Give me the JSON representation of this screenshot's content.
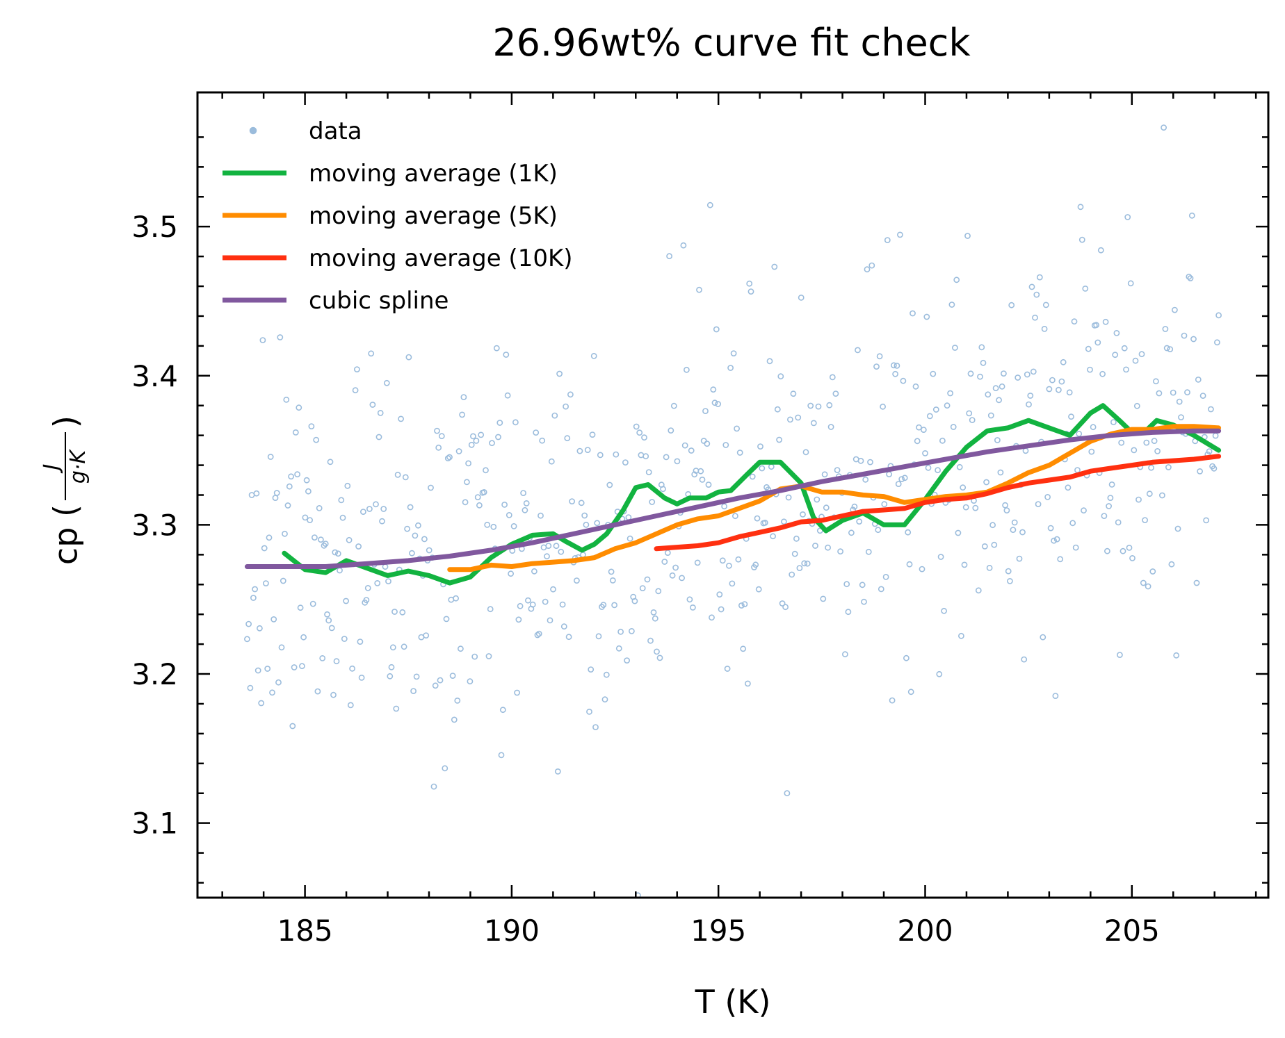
{
  "chart_data": {
    "type": "line",
    "title": "26.96wt% curve fit check",
    "xlabel": "T (K)",
    "ylabel": {
      "prefix": "cp (",
      "numerator": "J",
      "denominator": "g·K",
      "suffix": ")"
    },
    "xlim": [
      182.4,
      208.3
    ],
    "ylim": [
      3.05,
      3.59
    ],
    "x_ticks": [
      185,
      190,
      195,
      200,
      205
    ],
    "y_ticks": [
      3.1,
      3.2,
      3.3,
      3.4,
      3.5
    ],
    "x_tick_labels": [
      "185",
      "190",
      "195",
      "200",
      "205"
    ],
    "y_tick_labels": [
      "3.1",
      "3.2",
      "3.3",
      "3.4",
      "3.5"
    ],
    "grid": false,
    "legend_position": "top-left",
    "series": [
      {
        "name": "data",
        "kind": "scatter",
        "color": "#9bbcdc",
        "x_range": [
          183.6,
          207.1
        ],
        "count": 620,
        "trend": [
          [
            183.6,
            3.272
          ],
          [
            187,
            3.272
          ],
          [
            191,
            3.288
          ],
          [
            195,
            3.312
          ],
          [
            199,
            3.338
          ],
          [
            203,
            3.358
          ],
          [
            207.1,
            3.362
          ]
        ],
        "spread": 0.07
      },
      {
        "name": "moving average (1K)",
        "kind": "line",
        "color": "#12b340",
        "points": [
          [
            184.5,
            3.281
          ],
          [
            185.0,
            3.27
          ],
          [
            185.5,
            3.268
          ],
          [
            186.0,
            3.276
          ],
          [
            186.5,
            3.271
          ],
          [
            187.0,
            3.266
          ],
          [
            187.5,
            3.269
          ],
          [
            188.0,
            3.266
          ],
          [
            188.5,
            3.261
          ],
          [
            189.0,
            3.265
          ],
          [
            189.5,
            3.278
          ],
          [
            190.0,
            3.287
          ],
          [
            190.5,
            3.293
          ],
          [
            191.0,
            3.294
          ],
          [
            191.3,
            3.289
          ],
          [
            191.7,
            3.283
          ],
          [
            192.0,
            3.287
          ],
          [
            192.3,
            3.294
          ],
          [
            192.7,
            3.31
          ],
          [
            193.0,
            3.325
          ],
          [
            193.3,
            3.327
          ],
          [
            193.7,
            3.318
          ],
          [
            194.0,
            3.314
          ],
          [
            194.3,
            3.318
          ],
          [
            194.7,
            3.318
          ],
          [
            195.0,
            3.322
          ],
          [
            195.3,
            3.323
          ],
          [
            195.7,
            3.334
          ],
          [
            196.0,
            3.342
          ],
          [
            196.5,
            3.342
          ],
          [
            197.0,
            3.328
          ],
          [
            197.3,
            3.305
          ],
          [
            197.6,
            3.296
          ],
          [
            198.0,
            3.303
          ],
          [
            198.5,
            3.308
          ],
          [
            199.0,
            3.3
          ],
          [
            199.5,
            3.3
          ],
          [
            200.0,
            3.317
          ],
          [
            200.5,
            3.336
          ],
          [
            201.0,
            3.352
          ],
          [
            201.5,
            3.363
          ],
          [
            202.0,
            3.365
          ],
          [
            202.5,
            3.37
          ],
          [
            203.0,
            3.365
          ],
          [
            203.5,
            3.36
          ],
          [
            204.0,
            3.375
          ],
          [
            204.3,
            3.38
          ],
          [
            204.7,
            3.37
          ],
          [
            205.0,
            3.362
          ],
          [
            205.3,
            3.362
          ],
          [
            205.6,
            3.37
          ],
          [
            206.0,
            3.367
          ],
          [
            206.5,
            3.36
          ],
          [
            207.1,
            3.35
          ]
        ]
      },
      {
        "name": "moving average (5K)",
        "kind": "line",
        "color": "#ff8c00",
        "points": [
          [
            188.5,
            3.27
          ],
          [
            189.0,
            3.27
          ],
          [
            189.5,
            3.273
          ],
          [
            190.0,
            3.272
          ],
          [
            190.5,
            3.274
          ],
          [
            191.0,
            3.275
          ],
          [
            191.5,
            3.276
          ],
          [
            192.0,
            3.278
          ],
          [
            192.5,
            3.284
          ],
          [
            193.0,
            3.288
          ],
          [
            193.5,
            3.294
          ],
          [
            194.0,
            3.3
          ],
          [
            194.5,
            3.304
          ],
          [
            195.0,
            3.306
          ],
          [
            195.5,
            3.311
          ],
          [
            196.0,
            3.316
          ],
          [
            196.5,
            3.324
          ],
          [
            197.0,
            3.326
          ],
          [
            197.5,
            3.322
          ],
          [
            198.0,
            3.322
          ],
          [
            198.5,
            3.32
          ],
          [
            199.0,
            3.319
          ],
          [
            199.5,
            3.315
          ],
          [
            200.0,
            3.317
          ],
          [
            200.5,
            3.319
          ],
          [
            201.0,
            3.32
          ],
          [
            201.5,
            3.322
          ],
          [
            202.0,
            3.328
          ],
          [
            202.5,
            3.335
          ],
          [
            203.0,
            3.34
          ],
          [
            203.5,
            3.348
          ],
          [
            204.0,
            3.356
          ],
          [
            204.5,
            3.361
          ],
          [
            205.0,
            3.364
          ],
          [
            205.5,
            3.364
          ],
          [
            206.0,
            3.366
          ],
          [
            206.5,
            3.366
          ],
          [
            207.1,
            3.365
          ]
        ]
      },
      {
        "name": "moving average (10K)",
        "kind": "line",
        "color": "#ff3010",
        "points": [
          [
            193.5,
            3.284
          ],
          [
            194.0,
            3.285
          ],
          [
            194.5,
            3.286
          ],
          [
            195.0,
            3.288
          ],
          [
            195.5,
            3.292
          ],
          [
            196.0,
            3.295
          ],
          [
            196.5,
            3.298
          ],
          [
            197.0,
            3.302
          ],
          [
            197.5,
            3.303
          ],
          [
            198.0,
            3.306
          ],
          [
            198.5,
            3.309
          ],
          [
            199.0,
            3.31
          ],
          [
            199.5,
            3.311
          ],
          [
            200.0,
            3.315
          ],
          [
            200.5,
            3.317
          ],
          [
            201.0,
            3.318
          ],
          [
            201.5,
            3.321
          ],
          [
            202.0,
            3.325
          ],
          [
            202.5,
            3.328
          ],
          [
            203.0,
            3.33
          ],
          [
            203.5,
            3.332
          ],
          [
            204.0,
            3.336
          ],
          [
            204.5,
            3.338
          ],
          [
            205.0,
            3.34
          ],
          [
            205.5,
            3.342
          ],
          [
            206.0,
            3.343
          ],
          [
            206.5,
            3.344
          ],
          [
            207.1,
            3.346
          ]
        ]
      },
      {
        "name": "cubic spline",
        "kind": "line",
        "color": "#80589e",
        "points": [
          [
            183.6,
            3.272
          ],
          [
            184.5,
            3.272
          ],
          [
            185.5,
            3.272
          ],
          [
            186.5,
            3.274
          ],
          [
            187.5,
            3.276
          ],
          [
            188.5,
            3.279
          ],
          [
            189.5,
            3.283
          ],
          [
            190.5,
            3.288
          ],
          [
            191.5,
            3.294
          ],
          [
            192.5,
            3.3
          ],
          [
            193.5,
            3.306
          ],
          [
            194.5,
            3.312
          ],
          [
            195.5,
            3.318
          ],
          [
            196.5,
            3.323
          ],
          [
            197.5,
            3.329
          ],
          [
            198.5,
            3.334
          ],
          [
            199.5,
            3.339
          ],
          [
            200.5,
            3.344
          ],
          [
            201.5,
            3.349
          ],
          [
            202.5,
            3.353
          ],
          [
            203.5,
            3.357
          ],
          [
            204.5,
            3.36
          ],
          [
            205.5,
            3.362
          ],
          [
            206.5,
            3.363
          ],
          [
            207.1,
            3.363
          ]
        ]
      }
    ]
  }
}
